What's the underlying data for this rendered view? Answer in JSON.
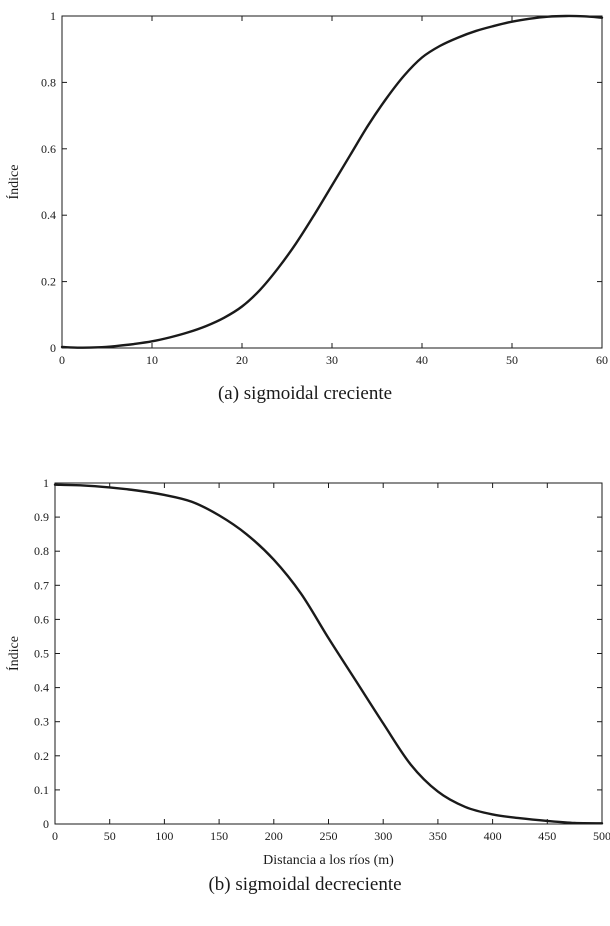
{
  "chart_data": [
    {
      "type": "line",
      "title": "(a) sigmoidal creciente",
      "xlabel": "",
      "ylabel": "Índice",
      "xlim": [
        0,
        60
      ],
      "ylim": [
        0,
        1
      ],
      "xticks": [
        0,
        10,
        20,
        30,
        40,
        50,
        60
      ],
      "yticks": [
        0,
        0.2,
        0.4,
        0.6,
        0.8,
        1
      ],
      "grid": false,
      "series": [
        {
          "x": [
            0,
            2,
            4,
            6,
            8,
            10,
            12,
            14,
            16,
            18,
            20,
            22,
            24,
            26,
            28,
            30,
            32,
            34,
            36,
            38,
            40,
            42,
            44,
            46,
            48,
            50,
            52,
            54,
            56,
            58,
            60
          ],
          "y": [
            0.003,
            0.001,
            0.002,
            0.006,
            0.012,
            0.02,
            0.032,
            0.047,
            0.066,
            0.091,
            0.125,
            0.175,
            0.24,
            0.315,
            0.4,
            0.49,
            0.58,
            0.67,
            0.75,
            0.82,
            0.875,
            0.91,
            0.935,
            0.955,
            0.97,
            0.983,
            0.992,
            0.998,
            1.0,
            0.999,
            0.995
          ],
          "color": "#1a1a1a"
        }
      ]
    },
    {
      "type": "line",
      "title": "(b) sigmoidal decreciente",
      "xlabel": "Distancia a los ríos (m)",
      "ylabel": "Índice",
      "xlim": [
        0,
        500
      ],
      "ylim": [
        0,
        1
      ],
      "xticks": [
        0,
        50,
        100,
        150,
        200,
        250,
        300,
        350,
        400,
        450,
        500
      ],
      "yticks": [
        0,
        0.1,
        0.2,
        0.3,
        0.4,
        0.5,
        0.6,
        0.7,
        0.8,
        0.9,
        1
      ],
      "grid": false,
      "series": [
        {
          "x": [
            0,
            25,
            50,
            75,
            100,
            125,
            150,
            175,
            200,
            225,
            250,
            275,
            300,
            325,
            350,
            375,
            400,
            425,
            450,
            475,
            500
          ],
          "y": [
            0.995,
            0.993,
            0.987,
            0.978,
            0.965,
            0.945,
            0.905,
            0.85,
            0.775,
            0.675,
            0.545,
            0.42,
            0.295,
            0.175,
            0.095,
            0.05,
            0.028,
            0.017,
            0.009,
            0.003,
            0.002
          ],
          "color": "#1a1a1a"
        }
      ]
    }
  ]
}
